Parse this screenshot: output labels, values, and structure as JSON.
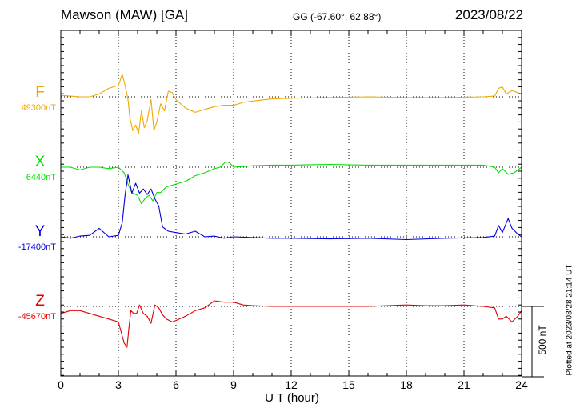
{
  "header": {
    "title": "Mawson (MAW)  [GA]",
    "coords": "GG (-67.60°,  62.88°)",
    "date": "2023/08/22"
  },
  "footer": {
    "plotted": "Plotted at 2023/08/28 21:14 UT"
  },
  "chart_data": {
    "type": "line",
    "xlabel": "U T (hour)",
    "xlim": [
      0,
      24
    ],
    "xticks": [
      0,
      3,
      6,
      9,
      12,
      15,
      18,
      21,
      24
    ],
    "grid": true,
    "scale_bar": {
      "label": "500 nT",
      "value_nT": 500
    },
    "series": [
      {
        "name": "F",
        "color": "#f0a800",
        "baseline_label": "49300nT",
        "baseline": 49300,
        "points": [
          [
            0,
            49310
          ],
          [
            0.5,
            49305
          ],
          [
            1,
            49300
          ],
          [
            1.5,
            49300
          ],
          [
            2,
            49320
          ],
          [
            2.5,
            49360
          ],
          [
            3,
            49380
          ],
          [
            3.2,
            49460
          ],
          [
            3.35,
            49380
          ],
          [
            3.5,
            49280
          ],
          [
            3.6,
            49150
          ],
          [
            3.75,
            49060
          ],
          [
            3.9,
            49100
          ],
          [
            4.05,
            49040
          ],
          [
            4.2,
            49200
          ],
          [
            4.35,
            49080
          ],
          [
            4.5,
            49130
          ],
          [
            4.7,
            49280
          ],
          [
            4.85,
            49060
          ],
          [
            5,
            49120
          ],
          [
            5.2,
            49250
          ],
          [
            5.4,
            49200
          ],
          [
            5.6,
            49340
          ],
          [
            5.8,
            49330
          ],
          [
            6,
            49280
          ],
          [
            6.5,
            49220
          ],
          [
            7,
            49190
          ],
          [
            7.5,
            49210
          ],
          [
            8,
            49230
          ],
          [
            8.5,
            49240
          ],
          [
            9,
            49240
          ],
          [
            9.5,
            49260
          ],
          [
            10,
            49270
          ],
          [
            11,
            49285
          ],
          [
            12,
            49290
          ],
          [
            14,
            49295
          ],
          [
            16,
            49300
          ],
          [
            18,
            49295
          ],
          [
            20,
            49295
          ],
          [
            22,
            49300
          ],
          [
            22.6,
            49305
          ],
          [
            22.8,
            49360
          ],
          [
            23,
            49370
          ],
          [
            23.2,
            49320
          ],
          [
            23.5,
            49345
          ],
          [
            24,
            49320
          ]
        ]
      },
      {
        "name": "X",
        "color": "#00e000",
        "baseline_label": "6440nT",
        "baseline": 6440,
        "points": [
          [
            0,
            6440
          ],
          [
            0.5,
            6440
          ],
          [
            1,
            6420
          ],
          [
            1.5,
            6440
          ],
          [
            2,
            6440
          ],
          [
            2.5,
            6430
          ],
          [
            3,
            6440
          ],
          [
            3.3,
            6400
          ],
          [
            3.5,
            6320
          ],
          [
            3.7,
            6260
          ],
          [
            4,
            6240
          ],
          [
            4.2,
            6180
          ],
          [
            4.4,
            6220
          ],
          [
            4.6,
            6240
          ],
          [
            4.8,
            6200
          ],
          [
            5,
            6260
          ],
          [
            5.2,
            6260
          ],
          [
            5.5,
            6300
          ],
          [
            6,
            6320
          ],
          [
            6.5,
            6340
          ],
          [
            7,
            6380
          ],
          [
            7.5,
            6400
          ],
          [
            8,
            6430
          ],
          [
            8.3,
            6440
          ],
          [
            8.6,
            6480
          ],
          [
            8.8,
            6470
          ],
          [
            9,
            6440
          ],
          [
            10,
            6450
          ],
          [
            11,
            6455
          ],
          [
            12,
            6455
          ],
          [
            14,
            6460
          ],
          [
            16,
            6455
          ],
          [
            18,
            6455
          ],
          [
            20,
            6455
          ],
          [
            22,
            6455
          ],
          [
            22.6,
            6440
          ],
          [
            22.8,
            6400
          ],
          [
            23,
            6430
          ],
          [
            23.3,
            6390
          ],
          [
            23.6,
            6400
          ],
          [
            24,
            6440
          ]
        ]
      },
      {
        "name": "Y",
        "color": "#0000e0",
        "baseline_label": "-17400nT",
        "baseline": -17400,
        "points": [
          [
            0,
            -17400
          ],
          [
            0.5,
            -17410
          ],
          [
            1,
            -17395
          ],
          [
            1.5,
            -17390
          ],
          [
            2,
            -17340
          ],
          [
            2.5,
            -17400
          ],
          [
            3,
            -17390
          ],
          [
            3.2,
            -17300
          ],
          [
            3.35,
            -17100
          ],
          [
            3.5,
            -16960
          ],
          [
            3.7,
            -17090
          ],
          [
            3.9,
            -17020
          ],
          [
            4.1,
            -17090
          ],
          [
            4.3,
            -17060
          ],
          [
            4.5,
            -17100
          ],
          [
            4.7,
            -17060
          ],
          [
            4.9,
            -17130
          ],
          [
            5.1,
            -17180
          ],
          [
            5.3,
            -17330
          ],
          [
            5.6,
            -17360
          ],
          [
            6,
            -17370
          ],
          [
            6.5,
            -17380
          ],
          [
            7,
            -17360
          ],
          [
            7.5,
            -17400
          ],
          [
            8,
            -17395
          ],
          [
            8.5,
            -17410
          ],
          [
            9,
            -17400
          ],
          [
            10,
            -17405
          ],
          [
            11,
            -17410
          ],
          [
            12,
            -17410
          ],
          [
            14,
            -17415
          ],
          [
            16,
            -17410
          ],
          [
            18,
            -17420
          ],
          [
            20,
            -17410
          ],
          [
            22,
            -17405
          ],
          [
            22.6,
            -17395
          ],
          [
            22.8,
            -17320
          ],
          [
            23,
            -17370
          ],
          [
            23.3,
            -17270
          ],
          [
            23.5,
            -17340
          ],
          [
            23.8,
            -17380
          ],
          [
            24,
            -17400
          ]
        ]
      },
      {
        "name": "Z",
        "color": "#e00000",
        "baseline_label": "-45670nT",
        "baseline": -45670,
        "points": [
          [
            0,
            -45720
          ],
          [
            0.5,
            -45700
          ],
          [
            1,
            -45700
          ],
          [
            1.5,
            -45720
          ],
          [
            2,
            -45740
          ],
          [
            2.5,
            -45760
          ],
          [
            3,
            -45780
          ],
          [
            3.2,
            -45880
          ],
          [
            3.3,
            -45930
          ],
          [
            3.45,
            -45960
          ],
          [
            3.55,
            -45820
          ],
          [
            3.65,
            -45700
          ],
          [
            3.8,
            -45720
          ],
          [
            3.95,
            -45720
          ],
          [
            4.1,
            -45660
          ],
          [
            4.3,
            -45720
          ],
          [
            4.5,
            -45740
          ],
          [
            4.7,
            -45790
          ],
          [
            4.9,
            -45660
          ],
          [
            5.1,
            -45680
          ],
          [
            5.3,
            -45730
          ],
          [
            5.5,
            -45760
          ],
          [
            5.8,
            -45780
          ],
          [
            6,
            -45770
          ],
          [
            6.5,
            -45740
          ],
          [
            7,
            -45700
          ],
          [
            7.5,
            -45680
          ],
          [
            8,
            -45630
          ],
          [
            8.5,
            -45640
          ],
          [
            9,
            -45640
          ],
          [
            9.5,
            -45660
          ],
          [
            10,
            -45665
          ],
          [
            11,
            -45670
          ],
          [
            12,
            -45670
          ],
          [
            14,
            -45670
          ],
          [
            16,
            -45670
          ],
          [
            17,
            -45665
          ],
          [
            18,
            -45660
          ],
          [
            19,
            -45665
          ],
          [
            20,
            -45665
          ],
          [
            21,
            -45660
          ],
          [
            22,
            -45670
          ],
          [
            22.6,
            -45680
          ],
          [
            22.8,
            -45760
          ],
          [
            23,
            -45760
          ],
          [
            23.2,
            -45740
          ],
          [
            23.5,
            -45780
          ],
          [
            23.8,
            -45740
          ],
          [
            24,
            -45700
          ]
        ]
      }
    ]
  }
}
